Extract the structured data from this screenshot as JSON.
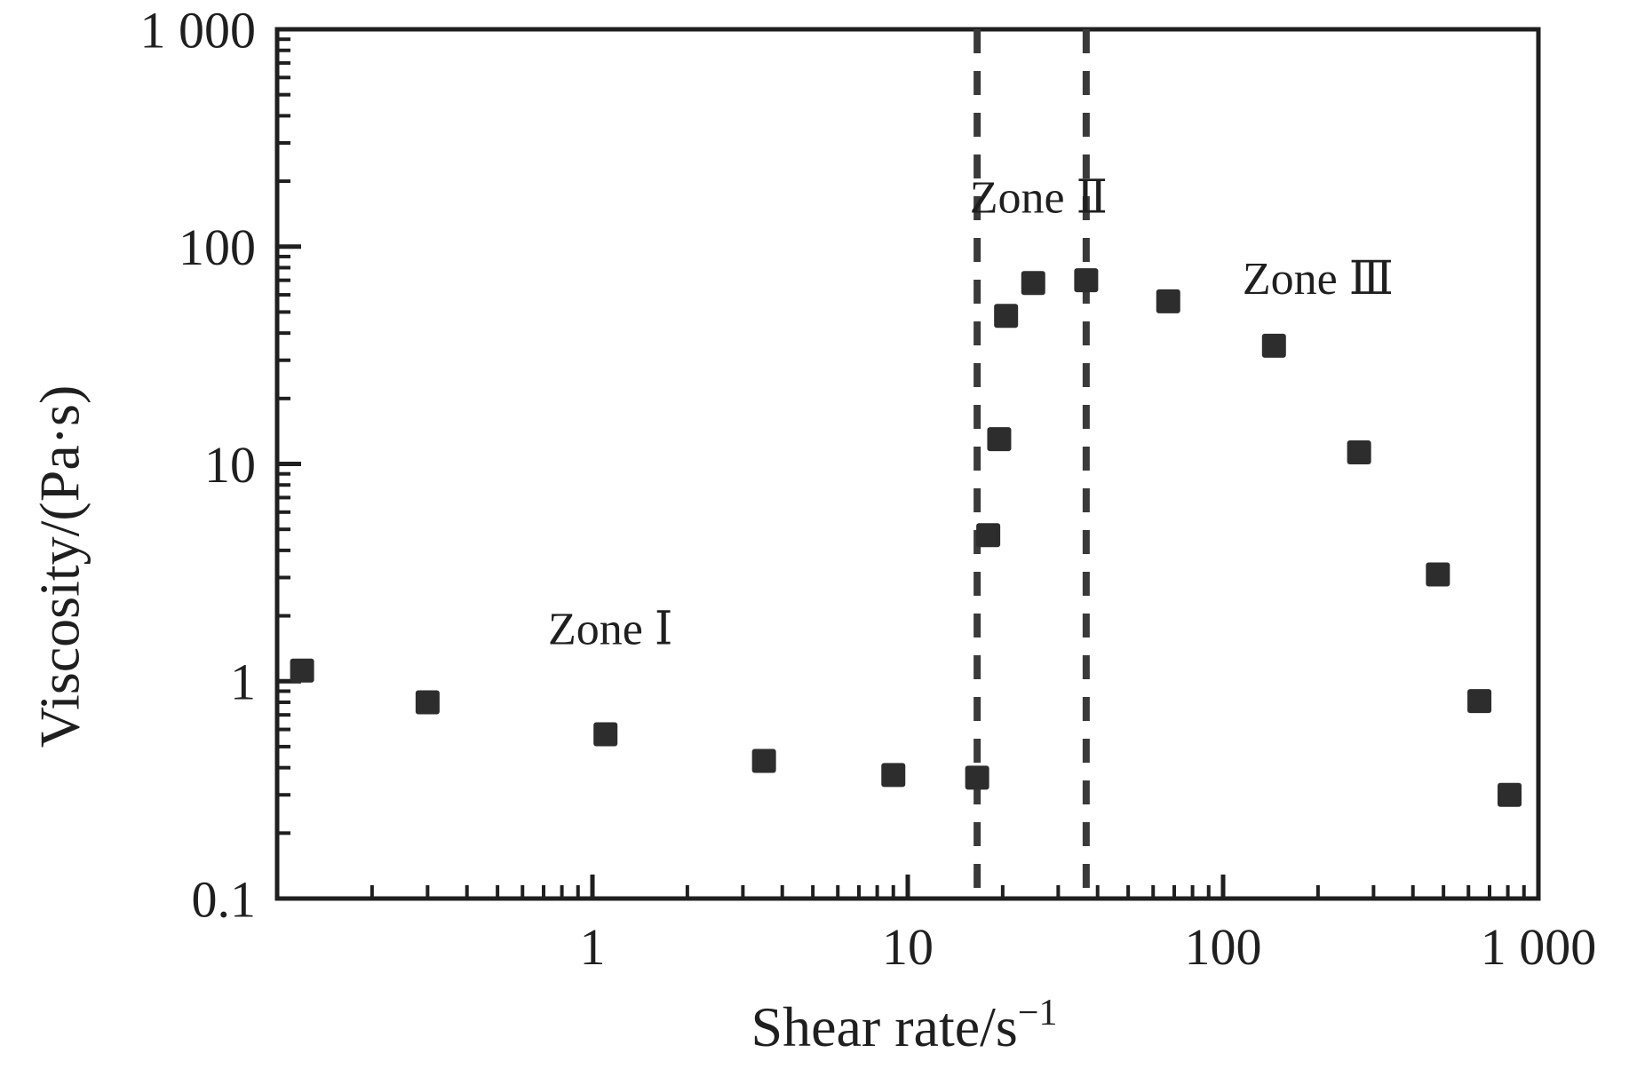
{
  "figure": {
    "background": "#ffffff",
    "ink": "#1f1f1f",
    "marker_color": "#2d2d2d",
    "dash_color": "#3a3a3a"
  },
  "chart_data": {
    "type": "scatter",
    "title": "",
    "xlabel_main": "Shear rate/s",
    "xlabel_sup": "−1",
    "ylabel": "Viscosity/(Pa·s)",
    "x_axis": {
      "scale": "log",
      "min": 0.1,
      "max": 1000,
      "tick_labels": [
        {
          "value": 1,
          "label": "1"
        },
        {
          "value": 10,
          "label": "10"
        },
        {
          "value": 100,
          "label": "100"
        },
        {
          "value": 1000,
          "label": "1 000"
        }
      ]
    },
    "y_axis": {
      "scale": "log",
      "min": 0.1,
      "max": 1000,
      "tick_labels": [
        {
          "value": 0.1,
          "label": "0.1"
        },
        {
          "value": 1,
          "label": "1"
        },
        {
          "value": 10,
          "label": "10"
        },
        {
          "value": 100,
          "label": "100"
        },
        {
          "value": 1000,
          "label": "1 000"
        }
      ]
    },
    "grid": false,
    "legend": null,
    "series": [
      {
        "name": "viscosity-vs-shear-rate",
        "marker": "square",
        "points": [
          [
            0.12,
            1.12
          ],
          [
            0.3,
            0.8
          ],
          [
            1.1,
            0.57
          ],
          [
            3.5,
            0.43
          ],
          [
            9,
            0.37
          ],
          [
            16.6,
            0.36
          ],
          [
            18,
            4.7
          ],
          [
            19.5,
            13
          ],
          [
            20.5,
            48
          ],
          [
            25,
            68
          ],
          [
            36.8,
            70
          ],
          [
            67,
            56
          ],
          [
            145,
            35
          ],
          [
            270,
            11.3
          ],
          [
            480,
            3.1
          ],
          [
            650,
            0.81
          ],
          [
            810,
            0.3
          ]
        ]
      }
    ],
    "reference_lines": [
      {
        "axis": "x",
        "value": 16.6,
        "style": "dashed"
      },
      {
        "axis": "x",
        "value": 36.8,
        "style": "dashed"
      }
    ],
    "annotations": [
      {
        "text": "Zone Ⅰ",
        "x": 1.14,
        "y": 1.76
      },
      {
        "text": "Zone Ⅱ",
        "x": 26,
        "y": 170
      },
      {
        "text": "Zone Ⅲ",
        "x": 200,
        "y": 72
      }
    ]
  }
}
